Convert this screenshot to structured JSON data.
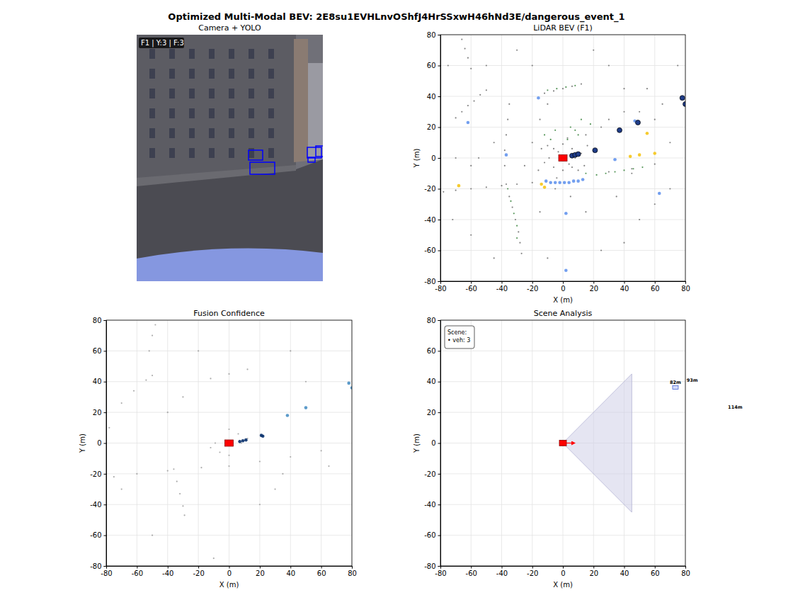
{
  "title": "Optimized Multi-Modal BEV: 2E8su1EVHLnvOShfJ4HrSSxwH46hNd3E/dangerous_event_1",
  "chart_data": [
    {
      "type": "image",
      "title": "Camera + YOLO",
      "annotations": [
        "F1 | Y:3 | F:3"
      ]
    },
    {
      "type": "scatter",
      "title": "LiDAR BEV (F1)",
      "xlabel": "X (m)",
      "ylabel": "Y (m)",
      "xlim": [
        -80,
        80
      ],
      "ylim": [
        -80,
        80
      ],
      "xticks": [
        -80,
        -60,
        -40,
        -20,
        0,
        20,
        40,
        60,
        80
      ],
      "yticks": [
        -80,
        -60,
        -40,
        -20,
        0,
        20,
        40,
        60,
        80
      ],
      "grid": true,
      "series": [
        {
          "color": "#666666",
          "marker": "point",
          "x": [
            -70,
            -66,
            -62,
            -58,
            -54,
            -50,
            -66,
            -64,
            -62,
            -60,
            -12,
            -6,
            0,
            6,
            12,
            -37,
            -35,
            -33,
            -31,
            -29,
            -28,
            -27,
            -78,
            -70,
            -60,
            -50,
            -40,
            -30,
            -20,
            -38,
            -38,
            -37,
            -36,
            -35,
            8,
            6,
            0,
            -6,
            -9,
            -6,
            0,
            6,
            12,
            -12,
            3,
            -4,
            14,
            -14,
            -20,
            -25,
            15,
            25,
            -15,
            -45,
            -55,
            -60,
            30,
            40,
            50,
            60,
            65,
            55,
            40,
            30,
            20,
            -30,
            -20,
            -10,
            -50,
            -75,
            -70,
            70,
            75,
            70,
            60,
            50,
            40,
            25,
            -10,
            -45,
            -60,
            -72,
            15,
            5,
            -5,
            35,
            45,
            -15,
            30,
            45,
            60,
            4,
            -3,
            10,
            -10,
            16,
            -16
          ],
          "values": [
            26,
            30,
            34,
            37,
            41,
            44,
            77,
            71,
            65,
            58,
            42,
            43.5,
            45,
            46.5,
            48,
            -17,
            -25,
            -32,
            -40,
            -48,
            -55,
            -62,
            -22,
            -21,
            -20,
            -19,
            -18,
            -17,
            -16,
            -5,
            5,
            15,
            25,
            35,
            0,
            6,
            9,
            6,
            0,
            -6,
            -8,
            -6,
            3,
            -3,
            13,
            -13,
            -5,
            6,
            10,
            -5,
            15,
            20,
            25,
            10,
            0,
            -5,
            25,
            30,
            30,
            25,
            35,
            45,
            45,
            60,
            70,
            70,
            60,
            35,
            60,
            60,
            0,
            10,
            60,
            -20,
            -30,
            -40,
            -55,
            -60,
            -65,
            -65,
            -50,
            -40,
            -35,
            -25,
            -20,
            -25,
            -10,
            -35,
            -9,
            -7,
            -4,
            -4,
            4,
            -8,
            8,
            8,
            -8
          ]
        },
        {
          "color": "#2e7d32",
          "marker": "point",
          "x": [
            -10,
            -4,
            2,
            8,
            -36,
            -34,
            -32,
            -30,
            22,
            28,
            34,
            40,
            46,
            52,
            5,
            8,
            10,
            -5,
            12,
            -8,
            3,
            15,
            -12,
            18,
            -30
          ],
          "values": [
            44,
            45,
            46,
            47,
            -20,
            -28,
            -36,
            -44,
            -11,
            -10,
            -9,
            -8,
            -7,
            -6,
            20,
            18,
            15,
            18,
            25,
            12,
            12,
            -10,
            15,
            22,
            -52
          ]
        },
        {
          "color": "#6495ed",
          "marker": "dot",
          "x": [
            -8,
            -5,
            -2,
            1,
            4,
            7,
            10,
            13,
            -11,
            2,
            -62,
            -37,
            34,
            63,
            2,
            47,
            -16
          ],
          "values": [
            -16,
            -16,
            -16,
            -16,
            -16,
            -15,
            -15,
            -14,
            -15,
            -36,
            23,
            2,
            -1,
            -23,
            -73,
            24,
            39
          ]
        },
        {
          "color": "#f5c518",
          "marker": "dot",
          "x": [
            -12,
            -68,
            44,
            50,
            55,
            60,
            -14
          ],
          "values": [
            -19,
            -18,
            1,
            2,
            16,
            3,
            -17
          ]
        },
        {
          "color": "#1f3c88",
          "marker": "circle",
          "x": [
            6,
            8,
            10,
            21,
            37,
            49,
            78,
            80
          ],
          "values": [
            1.5,
            2,
            2.5,
            5,
            18,
            23,
            39,
            35
          ]
        },
        {
          "color": "#ff0000",
          "marker": "square",
          "x": [
            0
          ],
          "values": [
            0
          ]
        }
      ]
    },
    {
      "type": "scatter",
      "title": "Fusion Confidence",
      "xlabel": "X (m)",
      "ylabel": "Y (m)",
      "xlim": [
        -80,
        80
      ],
      "ylim": [
        -80,
        80
      ],
      "xticks": [
        -80,
        -60,
        -40,
        -20,
        0,
        20,
        40,
        60,
        80
      ],
      "yticks": [
        -80,
        -60,
        -40,
        -20,
        0,
        20,
        40,
        60,
        80
      ],
      "grid": true,
      "series": [
        {
          "color": "#999999",
          "marker": "point",
          "x": [
            -70,
            -62,
            -54,
            -50,
            -52,
            -50,
            -48,
            -12,
            0,
            12,
            -36,
            -34,
            -32,
            -30,
            -29,
            -18,
            0,
            20,
            40,
            60,
            8,
            0,
            -9,
            0,
            6,
            -6,
            12,
            -12,
            -40,
            -60,
            -75,
            -30,
            30,
            -70,
            50,
            -20,
            20,
            -50,
            65,
            -10,
            40,
            -78,
            35,
            -40
          ],
          "values": [
            26,
            34,
            41,
            44,
            60,
            70,
            77,
            42,
            45,
            48,
            -17,
            -25,
            -33,
            -41,
            -47,
            -16,
            -15,
            -12,
            -9,
            -5,
            0,
            9,
            0,
            -8,
            6,
            -6,
            3,
            -3,
            -18,
            -20,
            -22,
            30,
            -30,
            -30,
            40,
            60,
            -40,
            -60,
            -15,
            -75,
            60,
            10,
            -20,
            20
          ]
        },
        {
          "color": "#08306b",
          "marker": "dot",
          "x": [
            7,
            9,
            11,
            21,
            22
          ],
          "values": [
            1,
            1.5,
            2,
            5,
            4.5
          ]
        },
        {
          "color": "#4a90c4",
          "marker": "dot",
          "x": [
            38,
            50,
            78,
            80
          ],
          "values": [
            18,
            23,
            39,
            36
          ]
        },
        {
          "color": "#ff0000",
          "marker": "square",
          "x": [
            0
          ],
          "values": [
            0
          ]
        }
      ]
    },
    {
      "type": "scene",
      "title": "Scene Analysis",
      "xlabel": "X (m)",
      "ylabel": "Y (m)",
      "xlim": [
        -80,
        80
      ],
      "ylim": [
        -80,
        80
      ],
      "xticks": [
        -80,
        -60,
        -40,
        -20,
        0,
        20,
        40,
        60,
        80
      ],
      "yticks": [
        -80,
        -60,
        -40,
        -20,
        0,
        20,
        40,
        60,
        80
      ],
      "grid": true,
      "series": [
        {
          "color": "#ff0000",
          "marker": "square",
          "x": [
            0
          ],
          "values": [
            0
          ]
        }
      ],
      "fov": {
        "color": "#d0d0e8",
        "x": [
          0,
          45,
          45
        ],
        "values": [
          0,
          45,
          -45
        ]
      },
      "vehicles": {
        "color": "#3050d0",
        "x": [
          73.5,
          84.5,
          112.5
        ],
        "values": [
          36.2,
          37.5,
          20
        ],
        "labels": [
          "82m",
          "93m",
          "114m"
        ]
      },
      "annotations": [
        "Scene:",
        "• veh: 3"
      ]
    }
  ]
}
